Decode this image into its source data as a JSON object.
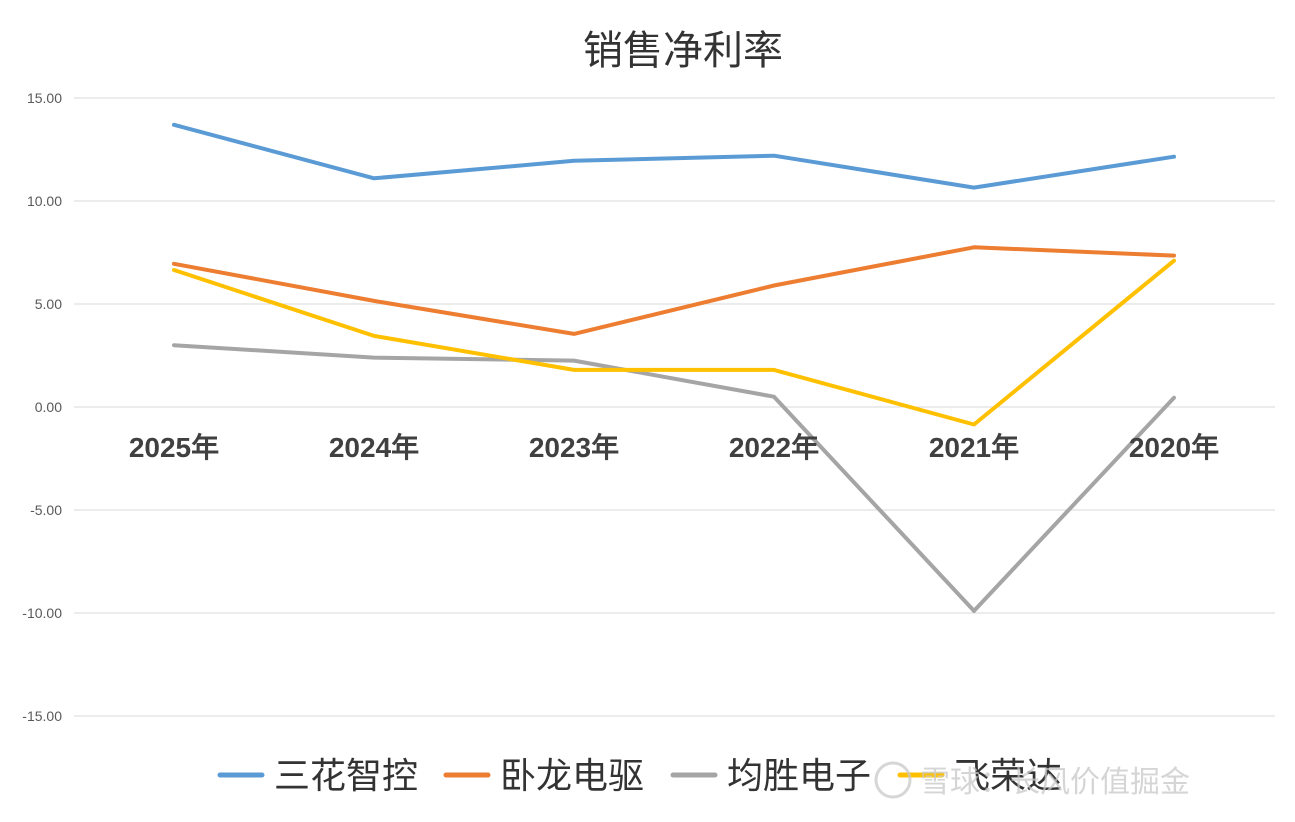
{
  "chart_data": {
    "type": "line",
    "title": "销售净利率",
    "categories": [
      "2025年",
      "2024年",
      "2023年",
      "2022年",
      "2021年",
      "2020年"
    ],
    "ylim": [
      -15,
      15
    ],
    "yticks": [
      "15.00",
      "10.00",
      "5.00",
      "0.00",
      "-5.00",
      "-10.00",
      "-15.00"
    ],
    "ytick_values": [
      15,
      10,
      5,
      0,
      -5,
      -10,
      -15
    ],
    "grid": true,
    "legend_position": "bottom",
    "series": [
      {
        "name": "三花智控",
        "color": "#5B9BD5",
        "values": [
          13.7,
          11.1,
          11.95,
          12.2,
          10.65,
          12.15
        ]
      },
      {
        "name": "卧龙电驱",
        "color": "#ED7D31",
        "values": [
          6.95,
          5.15,
          3.55,
          5.9,
          7.75,
          7.35
        ]
      },
      {
        "name": "均胜电子",
        "color": "#A5A5A5",
        "values": [
          3.0,
          2.4,
          2.25,
          0.5,
          -9.9,
          0.45
        ]
      },
      {
        "name": "飞荣达",
        "color": "#FFC000",
        "values": [
          6.65,
          3.45,
          1.8,
          1.8,
          -0.85,
          7.1
        ]
      }
    ]
  },
  "watermark": "雪球：长风价值掘金"
}
